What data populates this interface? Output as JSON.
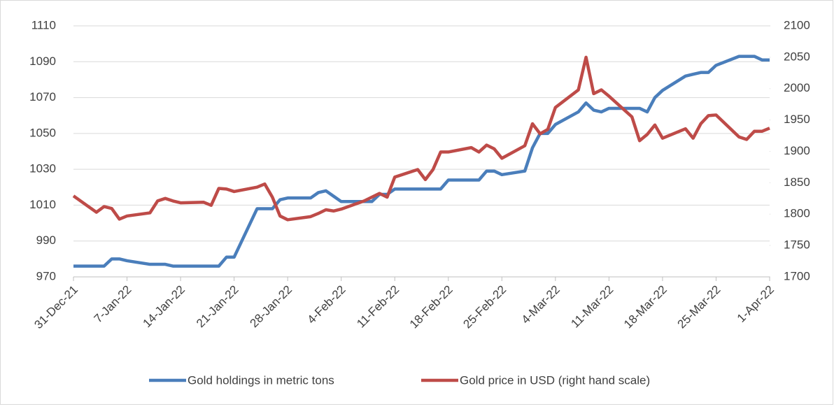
{
  "chart_data": {
    "type": "line",
    "x": [
      "31-Dec-21",
      "3-Jan-22",
      "4-Jan-22",
      "5-Jan-22",
      "6-Jan-22",
      "7-Jan-22",
      "10-Jan-22",
      "11-Jan-22",
      "12-Jan-22",
      "13-Jan-22",
      "14-Jan-22",
      "17-Jan-22",
      "18-Jan-22",
      "19-Jan-22",
      "20-Jan-22",
      "21-Jan-22",
      "24-Jan-22",
      "25-Jan-22",
      "26-Jan-22",
      "27-Jan-22",
      "28-Jan-22",
      "31-Jan-22",
      "1-Feb-22",
      "2-Feb-22",
      "3-Feb-22",
      "4-Feb-22",
      "7-Feb-22",
      "8-Feb-22",
      "9-Feb-22",
      "10-Feb-22",
      "11-Feb-22",
      "14-Feb-22",
      "15-Feb-22",
      "16-Feb-22",
      "17-Feb-22",
      "18-Feb-22",
      "21-Feb-22",
      "22-Feb-22",
      "23-Feb-22",
      "24-Feb-22",
      "25-Feb-22",
      "28-Feb-22",
      "1-Mar-22",
      "2-Mar-22",
      "3-Mar-22",
      "4-Mar-22",
      "7-Mar-22",
      "8-Mar-22",
      "9-Mar-22",
      "10-Mar-22",
      "11-Mar-22",
      "14-Mar-22",
      "15-Mar-22",
      "16-Mar-22",
      "17-Mar-22",
      "18-Mar-22",
      "21-Mar-22",
      "22-Mar-22",
      "23-Mar-22",
      "24-Mar-22",
      "25-Mar-22",
      "28-Mar-22",
      "29-Mar-22",
      "30-Mar-22",
      "31-Mar-22",
      "1-Apr-22"
    ],
    "series": [
      {
        "name": "Gold holdings in metric tons",
        "color": "#4a7ebb",
        "axis": "y",
        "values": [
          976,
          976,
          976,
          980,
          980,
          979,
          977,
          977,
          977,
          976,
          976,
          976,
          976,
          976,
          981,
          981,
          1008,
          1008,
          1008,
          1013,
          1014,
          1014,
          1017,
          1018,
          1015,
          1012,
          1012,
          1012,
          1016,
          1016,
          1019,
          1019,
          1019,
          1019,
          1019,
          1024,
          1024,
          1024,
          1029,
          1029,
          1027,
          1029,
          1042,
          1050,
          1050,
          1055,
          1062,
          1067,
          1063,
          1062,
          1064,
          1064,
          1064,
          1062,
          1070,
          1074,
          1082,
          1083,
          1084,
          1084,
          1088,
          1093,
          1093,
          1093,
          1091,
          1091
        ]
      },
      {
        "name": "Gold price in USD (right hand scale)",
        "color": "#be4b48",
        "axis": "y2",
        "values": [
          1829,
          1803,
          1812,
          1809,
          1792,
          1797,
          1802,
          1821,
          1825,
          1821,
          1818,
          1819,
          1814,
          1841,
          1840,
          1836,
          1843,
          1848,
          1827,
          1797,
          1791,
          1796,
          1801,
          1807,
          1805,
          1808,
          1821,
          1827,
          1833,
          1827,
          1859,
          1871,
          1855,
          1871,
          1899,
          1899,
          1906,
          1899,
          1910,
          1904,
          1889,
          1909,
          1944,
          1928,
          1935,
          1970,
          1998,
          2050,
          1992,
          1998,
          1988,
          1955,
          1917,
          1927,
          1942,
          1921,
          1936,
          1921,
          1944,
          1957,
          1958,
          1923,
          1919,
          1932,
          1932,
          1937
        ]
      }
    ],
    "xlim": [
      "31-Dec-21",
      "1-Apr-22"
    ],
    "xticks": [
      "31-Dec-21",
      "7-Jan-22",
      "14-Jan-22",
      "21-Jan-22",
      "28-Jan-22",
      "4-Feb-22",
      "11-Feb-22",
      "18-Feb-22",
      "25-Feb-22",
      "4-Mar-22",
      "11-Mar-22",
      "18-Mar-22",
      "25-Mar-22",
      "1-Apr-22"
    ],
    "ylim": [
      970,
      1110
    ],
    "yticks": [
      970,
      990,
      1010,
      1030,
      1050,
      1070,
      1090,
      1110
    ],
    "y2lim": [
      1700,
      2100
    ],
    "y2ticks": [
      1700,
      1750,
      1800,
      1850,
      1900,
      1950,
      2000,
      2050,
      2100
    ],
    "grid": true,
    "legend": "bottom"
  }
}
